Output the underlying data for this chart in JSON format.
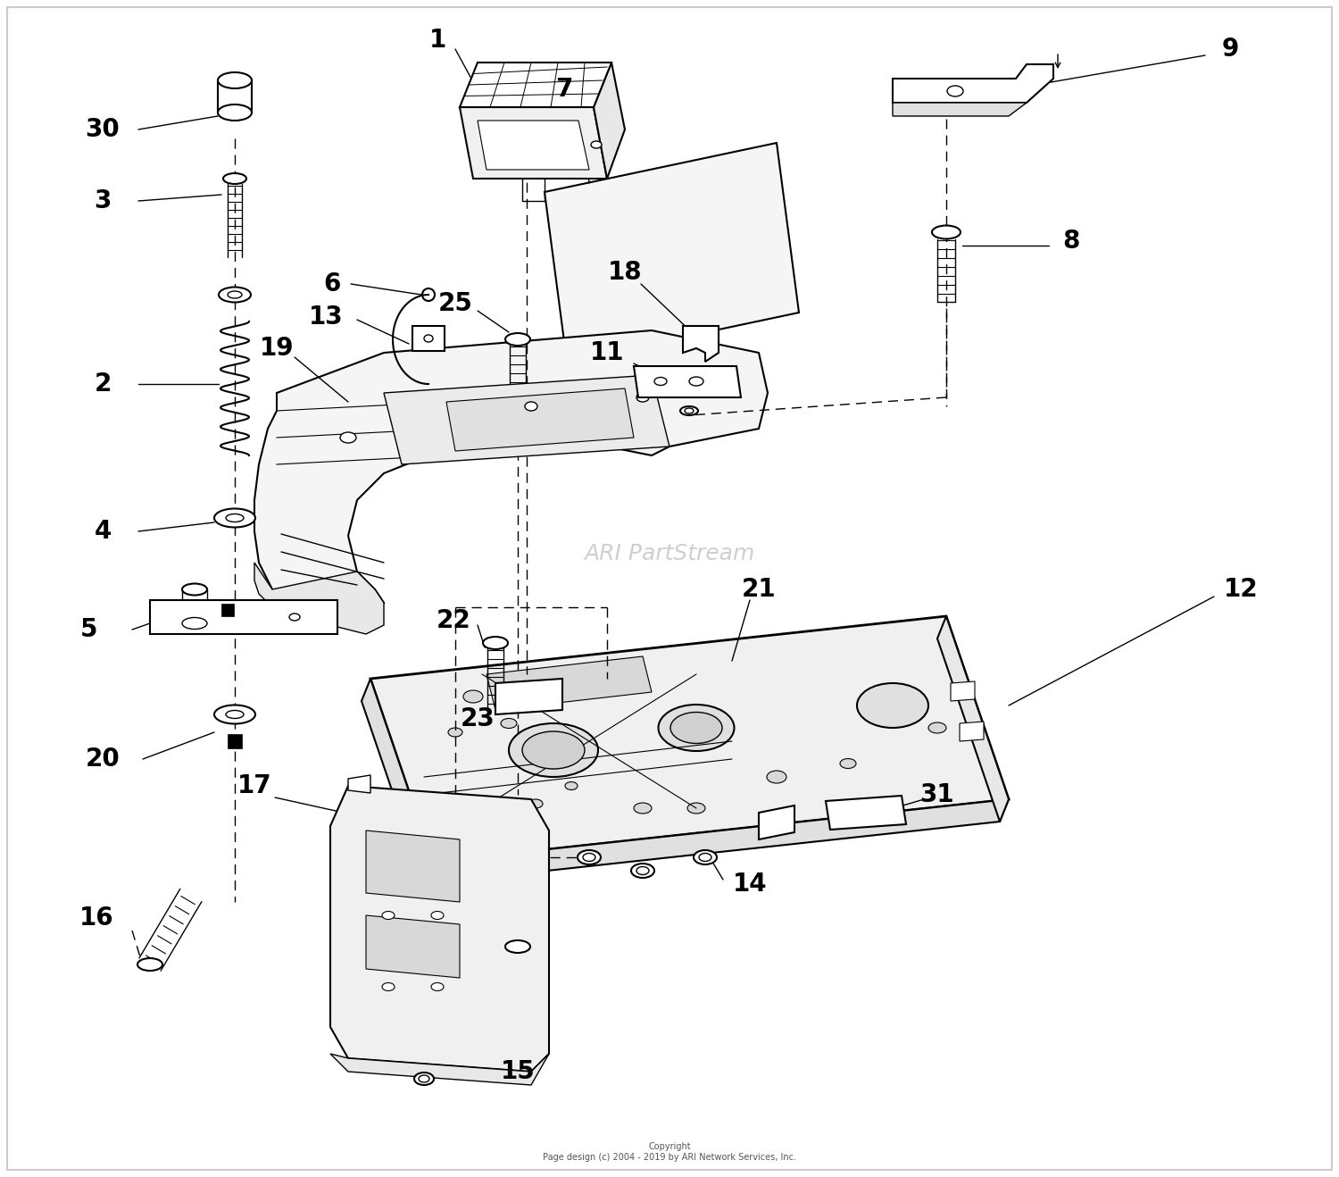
{
  "background_color": "#ffffff",
  "watermark": "ARI PartStream",
  "copyright": "Copyright\nPage design (c) 2004 - 2019 by ARI Network Services, Inc.",
  "line_color": "#000000",
  "text_color": "#000000",
  "label_fontsize": 20,
  "watermark_color": "#cccccc",
  "watermark_fontsize": 18,
  "border_color": "#cccccc"
}
